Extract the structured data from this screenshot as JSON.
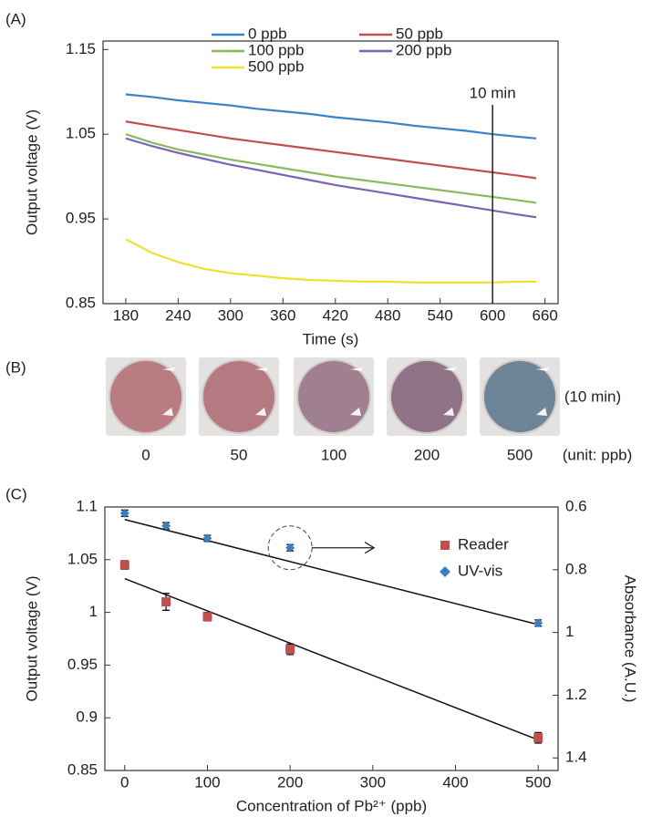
{
  "chart_data": [
    {
      "type": "line",
      "panel_label": "(A)",
      "x_label": "Time (s)",
      "y_label": "Output voltage (V)",
      "x": [
        180,
        210,
        240,
        270,
        300,
        330,
        360,
        390,
        420,
        450,
        480,
        510,
        540,
        570,
        600,
        630,
        650
      ],
      "series": [
        {
          "name": "0 ppb",
          "color": "#3a83c8",
          "values": [
            1.097,
            1.094,
            1.09,
            1.087,
            1.084,
            1.08,
            1.077,
            1.074,
            1.07,
            1.067,
            1.064,
            1.06,
            1.057,
            1.054,
            1.05,
            1.047,
            1.045
          ]
        },
        {
          "name": "50 ppb",
          "color": "#c0504d",
          "values": [
            1.065,
            1.06,
            1.055,
            1.05,
            1.045,
            1.041,
            1.037,
            1.033,
            1.029,
            1.025,
            1.021,
            1.017,
            1.013,
            1.009,
            1.005,
            1.001,
            0.998
          ]
        },
        {
          "name": "100 ppb",
          "color": "#8cb860",
          "values": [
            1.05,
            1.04,
            1.032,
            1.026,
            1.02,
            1.015,
            1.01,
            1.005,
            1.0,
            0.996,
            0.992,
            0.988,
            0.984,
            0.98,
            0.976,
            0.972,
            0.969
          ]
        },
        {
          "name": "200 ppb",
          "color": "#7a66b0",
          "values": [
            1.045,
            1.036,
            1.028,
            1.021,
            1.014,
            1.008,
            1.002,
            0.996,
            0.99,
            0.985,
            0.98,
            0.975,
            0.97,
            0.965,
            0.96,
            0.955,
            0.952
          ]
        },
        {
          "name": "500 ppb",
          "color": "#f0e030",
          "values": [
            0.926,
            0.91,
            0.899,
            0.891,
            0.886,
            0.883,
            0.88,
            0.878,
            0.877,
            0.876,
            0.876,
            0.875,
            0.875,
            0.875,
            0.875,
            0.876,
            0.876
          ]
        }
      ],
      "annotation": {
        "text": "10 min",
        "x": 600
      },
      "xlim": [
        154,
        675
      ],
      "xticks": [
        180,
        240,
        300,
        360,
        420,
        480,
        540,
        600,
        660
      ],
      "ylim": [
        0.85,
        1.16
      ],
      "yticks": [
        0.85,
        0.95,
        1.05,
        1.15
      ]
    },
    {
      "type": "scatter",
      "panel_label": "(C)",
      "x_label": "Concentration of Pb²⁺ (ppb)",
      "y_label": "Output voltage (V)",
      "y2_label": "Absorbance (A.U.)",
      "x": [
        0,
        50,
        100,
        200,
        500
      ],
      "series": [
        {
          "name": "Reader",
          "color": "#c0504d",
          "marker": "square",
          "values": [
            1.045,
            1.01,
            0.996,
            0.965,
            0.881
          ],
          "errors": [
            0.004,
            0.008,
            0.004,
            0.005,
            0.005
          ],
          "fit": {
            "x": [
              0,
              500
            ],
            "values": [
              1.032,
              0.879
            ]
          }
        },
        {
          "name": "UV-vis",
          "color": "#3a7fc0",
          "marker": "diamond",
          "axis": "y2",
          "values": [
            0.62,
            0.66,
            0.7,
            0.73,
            0.97
          ],
          "errors": [
            0.01,
            0.01,
            0.01,
            0.01,
            0.01
          ],
          "fit": {
            "x": [
              0,
              500
            ],
            "values": [
              0.64,
              0.975
            ]
          }
        }
      ],
      "xlim": [
        -24,
        524
      ],
      "xticks": [
        0,
        100,
        200,
        300,
        400,
        500
      ],
      "ylim": [
        0.85,
        1.1
      ],
      "yticks": [
        0.85,
        0.9,
        0.95,
        1,
        1.05,
        1.1
      ],
      "y2lim": [
        0.6,
        1.44
      ],
      "y2ticks": [
        0.6,
        0.8,
        1,
        1.2,
        1.4
      ],
      "y2_inverted": true
    }
  ],
  "panel_b": {
    "label": "(B)",
    "samples": [
      "0",
      "50",
      "100",
      "200",
      "500"
    ],
    "colors": [
      "#b97c83",
      "#b57a81",
      "#a07f90",
      "#907386",
      "#6d8597"
    ],
    "time_note": "(10 min)",
    "unit_note": "(unit: ppb)"
  }
}
